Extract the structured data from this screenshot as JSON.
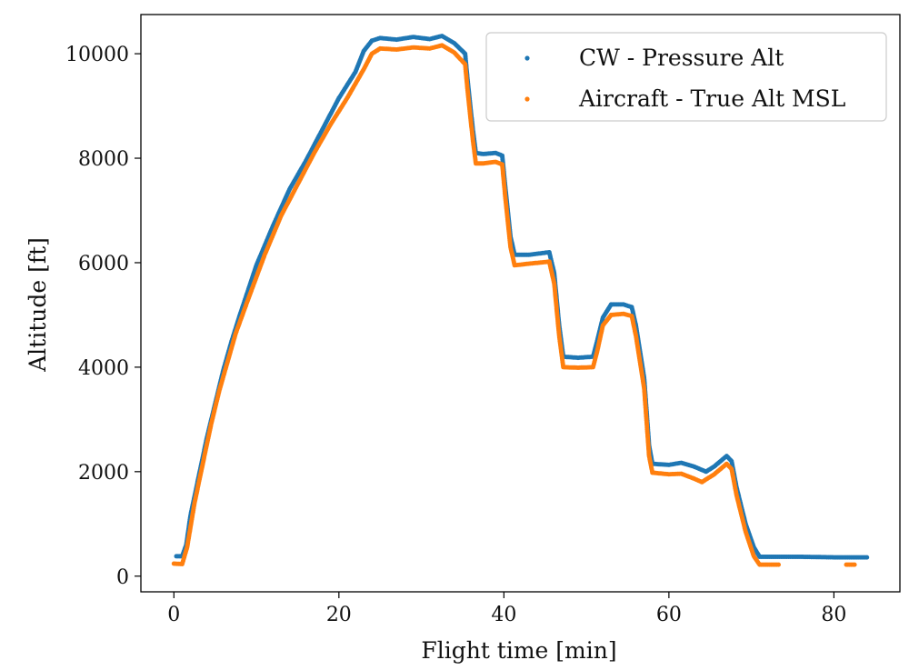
{
  "chart_data": {
    "type": "scatter",
    "title": "",
    "xlabel": "Flight time [min]",
    "ylabel": "Altitude [ft]",
    "xlim": [
      -4,
      88
    ],
    "ylim": [
      -300,
      10750
    ],
    "xticks": [
      0,
      20,
      40,
      60,
      80
    ],
    "yticks": [
      0,
      2000,
      4000,
      6000,
      8000,
      10000
    ],
    "grid": false,
    "legend": "top-right",
    "series": [
      {
        "name": "CW - Pressure Alt",
        "color": "#1f77b4",
        "points": [
          [
            0.3,
            380
          ],
          [
            1.0,
            380
          ],
          [
            1.5,
            600
          ],
          [
            2.0,
            1150
          ],
          [
            3.0,
            1900
          ],
          [
            4.0,
            2650
          ],
          [
            5.0,
            3300
          ],
          [
            6.0,
            3950
          ],
          [
            7.0,
            4500
          ],
          [
            8.0,
            5000
          ],
          [
            10.0,
            5950
          ],
          [
            12.0,
            6700
          ],
          [
            14.0,
            7400
          ],
          [
            16.0,
            7950
          ],
          [
            18.0,
            8550
          ],
          [
            20.0,
            9150
          ],
          [
            22.0,
            9650
          ],
          [
            23.0,
            10050
          ],
          [
            24.0,
            10250
          ],
          [
            25.0,
            10300
          ],
          [
            27.0,
            10270
          ],
          [
            29.0,
            10320
          ],
          [
            31.0,
            10280
          ],
          [
            32.5,
            10340
          ],
          [
            34.0,
            10200
          ],
          [
            35.3,
            10000
          ],
          [
            35.6,
            9500
          ],
          [
            36.2,
            8600
          ],
          [
            36.6,
            8100
          ],
          [
            37.5,
            8080
          ],
          [
            39.0,
            8100
          ],
          [
            39.8,
            8050
          ],
          [
            40.2,
            7400
          ],
          [
            40.8,
            6500
          ],
          [
            41.3,
            6150
          ],
          [
            43.0,
            6150
          ],
          [
            45.5,
            6200
          ],
          [
            46.1,
            5800
          ],
          [
            46.7,
            4800
          ],
          [
            47.2,
            4200
          ],
          [
            49.0,
            4180
          ],
          [
            50.8,
            4200
          ],
          [
            51.3,
            4500
          ],
          [
            52.0,
            4950
          ],
          [
            53.0,
            5200
          ],
          [
            54.5,
            5200
          ],
          [
            55.5,
            5150
          ],
          [
            56.0,
            4800
          ],
          [
            57.0,
            3800
          ],
          [
            57.6,
            2500
          ],
          [
            58.0,
            2150
          ],
          [
            60.0,
            2130
          ],
          [
            61.5,
            2170
          ],
          [
            63.0,
            2100
          ],
          [
            64.5,
            2000
          ],
          [
            65.5,
            2100
          ],
          [
            67.0,
            2300
          ],
          [
            67.6,
            2200
          ],
          [
            68.2,
            1700
          ],
          [
            69.3,
            1000
          ],
          [
            70.3,
            550
          ],
          [
            71.0,
            370
          ],
          [
            73.0,
            370
          ],
          [
            76.0,
            370
          ],
          [
            80.0,
            360
          ],
          [
            84.0,
            360
          ]
        ]
      },
      {
        "name": "Aircraft - True Alt MSL",
        "color": "#ff7f0e",
        "points": [
          [
            0.0,
            240
          ],
          [
            1.0,
            230
          ],
          [
            1.6,
            550
          ],
          [
            2.5,
            1400
          ],
          [
            3.5,
            2150
          ],
          [
            4.5,
            2900
          ],
          [
            5.5,
            3550
          ],
          [
            6.5,
            4100
          ],
          [
            7.5,
            4650
          ],
          [
            9.0,
            5300
          ],
          [
            11.0,
            6150
          ],
          [
            13.0,
            6900
          ],
          [
            15.0,
            7500
          ],
          [
            17.0,
            8100
          ],
          [
            19.0,
            8650
          ],
          [
            21.0,
            9150
          ],
          [
            23.0,
            9700
          ],
          [
            24.0,
            10000
          ],
          [
            25.0,
            10100
          ],
          [
            27.0,
            10080
          ],
          [
            29.0,
            10120
          ],
          [
            31.0,
            10100
          ],
          [
            32.5,
            10160
          ],
          [
            34.0,
            10020
          ],
          [
            35.3,
            9800
          ],
          [
            35.6,
            9300
          ],
          [
            36.2,
            8400
          ],
          [
            36.6,
            7900
          ],
          [
            37.5,
            7900
          ],
          [
            39.0,
            7930
          ],
          [
            39.8,
            7880
          ],
          [
            40.2,
            7200
          ],
          [
            40.8,
            6300
          ],
          [
            41.3,
            5950
          ],
          [
            43.0,
            5980
          ],
          [
            45.5,
            6020
          ],
          [
            46.1,
            5600
          ],
          [
            46.7,
            4600
          ],
          [
            47.2,
            4000
          ],
          [
            49.0,
            3990
          ],
          [
            50.8,
            4000
          ],
          [
            51.3,
            4300
          ],
          [
            52.0,
            4800
          ],
          [
            53.0,
            5000
          ],
          [
            54.5,
            5020
          ],
          [
            55.5,
            4980
          ],
          [
            56.0,
            4600
          ],
          [
            57.0,
            3600
          ],
          [
            57.6,
            2300
          ],
          [
            58.0,
            1980
          ],
          [
            60.0,
            1950
          ],
          [
            61.5,
            1960
          ],
          [
            63.0,
            1870
          ],
          [
            64.0,
            1800
          ],
          [
            65.5,
            1950
          ],
          [
            67.0,
            2150
          ],
          [
            67.6,
            2050
          ],
          [
            68.2,
            1550
          ],
          [
            69.3,
            850
          ],
          [
            70.3,
            380
          ],
          [
            71.0,
            220
          ],
          [
            72.0,
            220
          ],
          [
            73.5,
            220
          ],
          [
            81.5,
            220
          ],
          [
            82.5,
            220
          ]
        ]
      }
    ]
  }
}
